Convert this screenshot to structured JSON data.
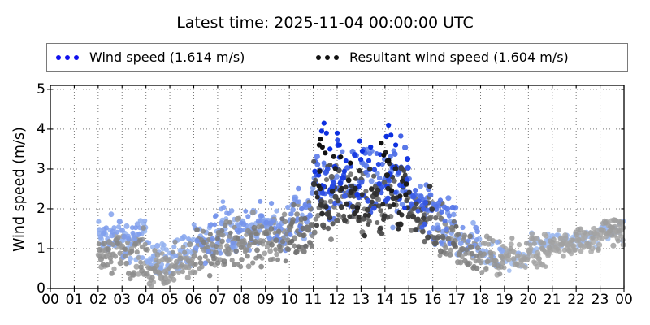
{
  "title": "Latest time: 2025-11-04 00:00:00 UTC",
  "legend": {
    "entries": [
      {
        "label": "Wind speed (1.614 m/s)",
        "color": "#1010ee"
      },
      {
        "label": "Resultant wind speed (1.604 m/s)",
        "color": "#111111"
      }
    ]
  },
  "axes": {
    "ylabel": "Wind speed (m/s)",
    "ytick_labels": [
      "0",
      "1",
      "2",
      "3",
      "4",
      "5"
    ]
  },
  "chart_data": {
    "type": "scatter",
    "title": "Latest time: 2025-11-04 00:00:00 UTC",
    "xlabel": "",
    "ylabel": "Wind speed (m/s)",
    "legend_position": "top",
    "grid": "dotted",
    "ylim": [
      0,
      5.1
    ],
    "yticks": [
      0,
      1,
      2,
      3,
      4,
      5
    ],
    "x_axis": {
      "unit": "hour of day (UTC)",
      "range_hours": [
        0,
        24
      ],
      "tick_labels": [
        "00",
        "01",
        "02",
        "03",
        "04",
        "05",
        "06",
        "07",
        "08",
        "09",
        "10",
        "11",
        "12",
        "13",
        "14",
        "15",
        "16",
        "17",
        "18",
        "19",
        "20",
        "21",
        "22",
        "23",
        "00"
      ]
    },
    "series": [
      {
        "key": "b",
        "name": "Wind speed",
        "latest_value_mps": 1.614,
        "color_light": "#a8c5f1",
        "color_dark": "#0c2fe0"
      },
      {
        "key": "g",
        "name": "Resultant wind speed",
        "latest_value_mps": 1.604,
        "color_light": "#b2b2b2",
        "color_dark": "#101010"
      }
    ],
    "data_coverage_hours": [
      2,
      24
    ],
    "points_per_hour": 38,
    "seed": 20251104,
    "hourly_bins": [
      {
        "h": 2,
        "b": [
          0.55,
          1.9,
          0.9
        ],
        "g": [
          0.25,
          1.55,
          1.0
        ],
        "k": 0.2
      },
      {
        "h": 3,
        "b": [
          0.5,
          1.95,
          1.0
        ],
        "g": [
          0.2,
          1.7,
          1.1
        ],
        "k": 0.2
      },
      {
        "h": 4,
        "b": [
          0.25,
          1.25,
          0.8
        ],
        "g": [
          0.05,
          1.05,
          1.1
        ],
        "k": 0.15
      },
      {
        "h": 5,
        "b": [
          0.35,
          1.45,
          0.8
        ],
        "g": [
          0.1,
          1.25,
          1.0
        ],
        "k": 0.15
      },
      {
        "h": 6,
        "b": [
          0.5,
          1.9,
          0.9
        ],
        "g": [
          0.3,
          1.6,
          1.05
        ],
        "k": 0.25
      },
      {
        "h": 7,
        "b": [
          0.65,
          2.3,
          1.0
        ],
        "g": [
          0.45,
          2.0,
          1.1
        ],
        "k": 0.25
      },
      {
        "h": 8,
        "b": [
          0.7,
          2.25,
          1.0
        ],
        "g": [
          0.5,
          2.0,
          1.1
        ],
        "k": 0.25
      },
      {
        "h": 9,
        "b": [
          0.75,
          2.2,
          1.0
        ],
        "g": [
          0.55,
          2.0,
          1.1
        ],
        "k": 0.28
      },
      {
        "h": 10,
        "b": [
          1.0,
          2.6,
          1.0
        ],
        "g": [
          0.8,
          2.4,
          1.1
        ],
        "k": 0.35
      },
      {
        "h": 11,
        "b": [
          1.5,
          3.9,
          1.1
        ],
        "g": [
          1.2,
          3.5,
          1.1
        ],
        "k": 0.7
      },
      {
        "h": 12,
        "b": [
          1.6,
          3.8,
          1.1
        ],
        "g": [
          1.4,
          3.4,
          1.1
        ],
        "k": 0.7
      },
      {
        "h": 13,
        "b": [
          1.5,
          3.7,
          1.1
        ],
        "g": [
          1.2,
          3.3,
          1.1
        ],
        "k": 0.65
      },
      {
        "h": 14,
        "b": [
          1.5,
          3.9,
          1.1
        ],
        "g": [
          1.3,
          3.5,
          1.1
        ],
        "k": 0.7
      },
      {
        "h": 15,
        "b": [
          1.3,
          2.9,
          1.0
        ],
        "g": [
          1.1,
          2.7,
          1.1
        ],
        "k": 0.55
      },
      {
        "h": 16,
        "b": [
          0.95,
          2.35,
          0.9
        ],
        "g": [
          0.75,
          2.2,
          1.0
        ],
        "k": 0.4
      },
      {
        "h": 17,
        "b": [
          0.6,
          1.7,
          0.7
        ],
        "g": [
          0.4,
          1.55,
          1.0
        ],
        "k": 0.25
      },
      {
        "h": 18,
        "b": [
          0.4,
          1.3,
          0.5
        ],
        "g": [
          0.25,
          1.35,
          1.05
        ],
        "k": 0.15
      },
      {
        "h": 19,
        "b": [
          0.4,
          1.1,
          0.3
        ],
        "g": [
          0.3,
          1.35,
          0.8
        ],
        "k": 0.1
      },
      {
        "h": 20,
        "b": [
          0.8,
          1.45,
          0.5
        ],
        "g": [
          0.5,
          1.45,
          1.1
        ],
        "k": 0.08
      },
      {
        "h": 21,
        "b": [
          0.9,
          1.5,
          0.5
        ],
        "g": [
          0.8,
          1.55,
          1.1
        ],
        "k": 0.08
      },
      {
        "h": 22,
        "b": [
          1.0,
          1.6,
          0.5
        ],
        "g": [
          0.9,
          1.65,
          1.1
        ],
        "k": 0.08
      },
      {
        "h": 23,
        "b": [
          1.15,
          1.8,
          0.5
        ],
        "g": [
          1.05,
          1.85,
          1.2
        ],
        "k": 0.1
      }
    ],
    "highlights": {
      "b": [
        [
          11.35,
          3.95
        ],
        [
          11.45,
          4.15
        ],
        [
          11.55,
          3.9
        ],
        [
          11.7,
          3.5
        ],
        [
          12.0,
          3.9
        ],
        [
          12.1,
          3.6
        ],
        [
          12.95,
          3.7
        ],
        [
          13.05,
          3.45
        ],
        [
          13.4,
          3.55
        ],
        [
          14.15,
          4.1
        ],
        [
          14.25,
          3.85
        ],
        [
          14.45,
          3.6
        ]
      ],
      "g": [
        [
          11.25,
          3.6
        ],
        [
          11.3,
          3.75
        ],
        [
          11.38,
          3.55
        ],
        [
          11.5,
          3.4
        ],
        [
          12.15,
          3.3
        ],
        [
          12.55,
          3.15
        ],
        [
          13.85,
          3.65
        ],
        [
          13.95,
          3.35
        ],
        [
          14.1,
          3.2
        ]
      ]
    }
  }
}
